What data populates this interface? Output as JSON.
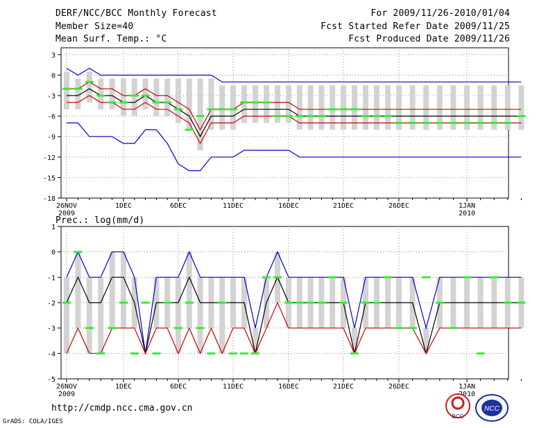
{
  "header": {
    "title": "DERF/NCC/BCC Monthly Forecast",
    "member_size": "Member Size=40",
    "variable": "Mean Surf. Temp.: °C",
    "period": "For 2009/11/26-2010/01/04",
    "started": "Fcst Started Refer Date 2009/11/25",
    "produced": "Fcst Produced Date 2009/11/26"
  },
  "footer": {
    "url": "http://cmdp.ncc.cma.gov.cn",
    "grads": "GrADS: COLA/IGES",
    "logo_left_text": "BCC",
    "logo_right_text": "NCC"
  },
  "colors": {
    "envelope": "#0000cc",
    "quartile": "#cc0000",
    "mean": "#000000",
    "observed": "#33ee33",
    "spread_bar": "#d3d3d3",
    "grid": "#888888"
  },
  "chart_data": [
    {
      "type": "line",
      "title": "",
      "ylabel": "Mean Surf. Temp.: °C",
      "ylim": [
        -18,
        4
      ],
      "yticks": [
        "3",
        "0",
        "-3",
        "-6",
        "-9",
        "-12",
        "-15",
        "-18"
      ],
      "xtick_labels": [
        "26NOV",
        "1DEC",
        "6DEC",
        "11DEC",
        "16DEC",
        "21DEC",
        "26DEC",
        "1JAN"
      ],
      "xtick_sub": {
        "26NOV": "2009",
        "1JAN": "2010"
      },
      "x_days": 40,
      "series": [
        {
          "name": "max",
          "values": [
            1,
            0,
            1,
            0,
            0,
            0,
            0,
            0,
            0,
            0,
            0,
            0,
            0,
            0,
            -1,
            -1,
            -1,
            -1,
            -1,
            -1,
            -1,
            -1,
            -1,
            -1,
            -1,
            -1,
            -1,
            -1,
            -1,
            -1,
            -1,
            -1,
            -1,
            -1,
            -1,
            -1,
            -1,
            -1,
            -1,
            -1
          ]
        },
        {
          "name": "upper",
          "values": [
            -2,
            -2,
            -1,
            -2,
            -2,
            -3,
            -3,
            -2,
            -3,
            -3,
            -4,
            -5,
            -8,
            -5,
            -5,
            -5,
            -4,
            -4,
            -4,
            -4,
            -4,
            -5,
            -5,
            -5,
            -5,
            -5,
            -5,
            -5,
            -5,
            -5,
            -5,
            -5,
            -5,
            -5,
            -5,
            -5,
            -5,
            -5,
            -5,
            -5
          ]
        },
        {
          "name": "mean",
          "values": [
            -3,
            -3,
            -2,
            -3,
            -3,
            -4,
            -4,
            -3,
            -4,
            -4,
            -5,
            -6,
            -9,
            -6,
            -6,
            -6,
            -5,
            -5,
            -5,
            -5,
            -5,
            -6,
            -6,
            -6,
            -6,
            -6,
            -6,
            -6,
            -6,
            -6,
            -6,
            -6,
            -6,
            -6,
            -6,
            -6,
            -6,
            -6,
            -6,
            -6
          ]
        },
        {
          "name": "lower",
          "values": [
            -4,
            -4,
            -3,
            -4,
            -4,
            -5,
            -5,
            -4,
            -5,
            -5,
            -6,
            -7,
            -10,
            -7,
            -7,
            -7,
            -6,
            -6,
            -6,
            -6,
            -6,
            -7,
            -7,
            -7,
            -7,
            -7,
            -7,
            -7,
            -7,
            -7,
            -7,
            -7,
            -7,
            -7,
            -7,
            -7,
            -7,
            -7,
            -7,
            -7
          ]
        },
        {
          "name": "min",
          "values": [
            -7,
            -7,
            -9,
            -9,
            -9,
            -10,
            -10,
            -8,
            -8,
            -10,
            -13,
            -14,
            -14,
            -12,
            -12,
            -12,
            -11,
            -11,
            -11,
            -11,
            -11,
            -12,
            -12,
            -12,
            -12,
            -12,
            -12,
            -12,
            -12,
            -12,
            -12,
            -12,
            -12,
            -12,
            -12,
            -12,
            -12,
            -12,
            -12,
            -12
          ]
        }
      ],
      "observed": [
        -2,
        -2,
        -1,
        -3,
        -4,
        -4,
        -3,
        -3,
        -4,
        -4,
        -5,
        -8,
        -6,
        -5,
        -5,
        -5,
        -4,
        -4,
        -4,
        -6,
        -6,
        -6,
        -6,
        -6,
        -5,
        -5,
        -5,
        -6,
        -6,
        -6,
        -7,
        -7,
        -7,
        -7,
        -7,
        -7,
        -7,
        -7,
        -7,
        -6
      ]
    },
    {
      "type": "line",
      "title": "",
      "ylabel": "Prec.: log(mm/d)",
      "ylim": [
        -5,
        1
      ],
      "yticks": [
        "1",
        "0",
        "-1",
        "-2",
        "-3",
        "-4",
        "-5"
      ],
      "xtick_labels": [
        "26NOV",
        "1DEC",
        "6DEC",
        "11DEC",
        "16DEC",
        "21DEC",
        "26DEC",
        "1JAN"
      ],
      "xtick_sub": {
        "26NOV": "2009",
        "1JAN": "2010"
      },
      "x_days": 40,
      "series": [
        {
          "name": "max",
          "values": [
            -1,
            0,
            -1,
            -1,
            0,
            0,
            -1,
            -4,
            -1,
            -1,
            -1,
            0,
            -1,
            -1,
            -1,
            -1,
            -1,
            -3,
            -1,
            0,
            -1,
            -1,
            -1,
            -1,
            -1,
            -1,
            -3,
            -1,
            -1,
            -1,
            -1,
            -1,
            -3,
            -1,
            -1,
            -1,
            -1,
            -1,
            -1,
            -1
          ]
        },
        {
          "name": "mean",
          "values": [
            -2,
            -1,
            -2,
            -2,
            -1,
            -1,
            -2,
            -4,
            -2,
            -2,
            -2,
            -1,
            -2,
            -2,
            -2,
            -2,
            -2,
            -4,
            -2,
            -1,
            -2,
            -2,
            -2,
            -2,
            -2,
            -2,
            -4,
            -2,
            -2,
            -2,
            -2,
            -2,
            -4,
            -2,
            -2,
            -2,
            -2,
            -2,
            -2,
            -2
          ]
        },
        {
          "name": "lower",
          "values": [
            -4,
            -3,
            -4,
            -4,
            -3,
            -3,
            -3,
            -4,
            -3,
            -3,
            -4,
            -3,
            -4,
            -3,
            -4,
            -3,
            -3,
            -4,
            -3,
            -2,
            -3,
            -3,
            -3,
            -3,
            -3,
            -3,
            -4,
            -3,
            -3,
            -3,
            -3,
            -3,
            -4,
            -3,
            -3,
            -3,
            -3,
            -3,
            -3,
            -3
          ]
        }
      ],
      "observed": [
        -2,
        0,
        -3,
        -4,
        -3,
        -2,
        -4,
        -2,
        -4,
        -2,
        -3,
        -2,
        -3,
        -4,
        -2,
        -4,
        -4,
        -4,
        -1,
        -1,
        -2,
        -2,
        -2,
        -2,
        -1,
        -2,
        -4,
        -2,
        -2,
        -1,
        -3,
        -3,
        -1,
        -2,
        -3,
        -1,
        -4,
        -1,
        -2,
        -2
      ]
    }
  ]
}
